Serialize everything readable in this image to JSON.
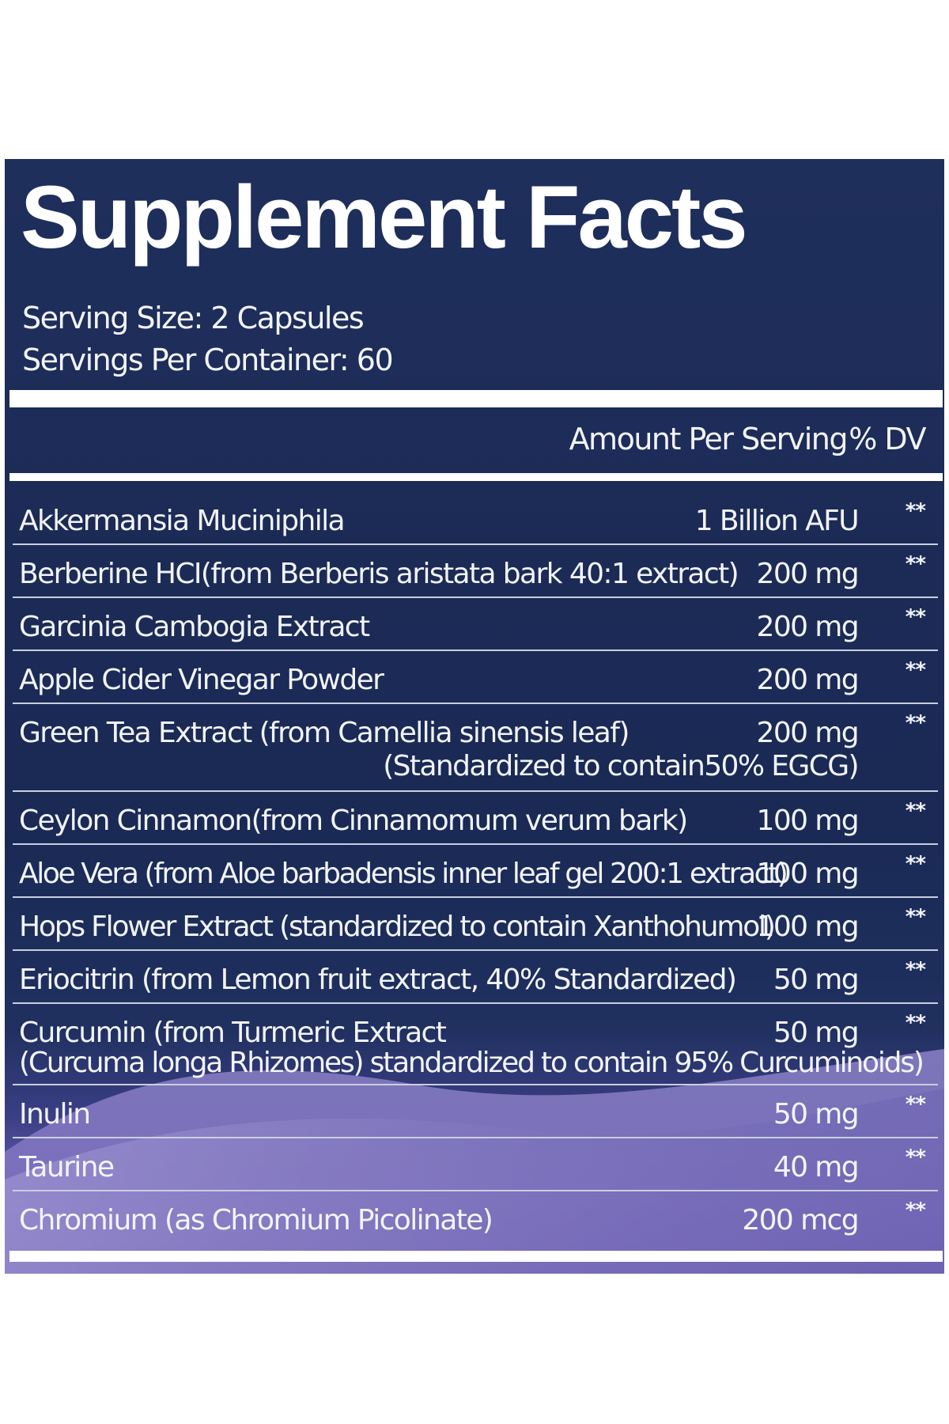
{
  "label": {
    "title": "Supplement Facts",
    "serving_size": "Serving Size: 2 Capsules",
    "servings_per_container": "Servings Per Container: 60",
    "amount_header": "Amount Per Serving",
    "dv_header": "% DV"
  },
  "colors": {
    "panel_background": "#1c2b56",
    "gradient_bottom": "#6c63b3",
    "text": "#ffffff"
  },
  "ingredients": [
    {
      "name": "Akkermansia Muciniphila",
      "amount": "1 Billion AFU",
      "dv": "**"
    },
    {
      "name": "Berberine HCI(from Berberis aristata bark 40:1 extract)",
      "amount": "200 mg",
      "dv": "**"
    },
    {
      "name": "Garcinia Cambogia Extract",
      "amount": "200 mg",
      "dv": "**"
    },
    {
      "name": "Apple Cider Vinegar Powder",
      "amount": "200 mg",
      "dv": "**"
    },
    {
      "name": "Green Tea Extract (from Camellia sinensis leaf)",
      "amount": "200 mg",
      "dv": "**",
      "note": "(Standardized to contain50% EGCG)"
    },
    {
      "name": "Ceylon Cinnamon(from Cinnamomum verum bark)",
      "amount": "100 mg",
      "dv": "**"
    },
    {
      "name": "Aloe Vera (from Aloe barbadensis inner leaf gel 200:1 extract)",
      "amount": "100 mg",
      "dv": "**"
    },
    {
      "name": "Hops Flower Extract (standardized to contain Xanthohumol)",
      "amount": "100 mg",
      "dv": "**"
    },
    {
      "name": "Eriocitrin (from Lemon fruit extract, 40% Standardized)",
      "amount": "50 mg",
      "dv": "**"
    },
    {
      "name": "Curcumin (from Turmeric Extract",
      "amount": "50 mg",
      "dv": "**",
      "note": "(Curcuma longa Rhizomes) standardized to contain 95% Curcuminoids)"
    },
    {
      "name": "Inulin",
      "amount": "50 mg",
      "dv": "**"
    },
    {
      "name": "Taurine",
      "amount": "40 mg",
      "dv": "**"
    },
    {
      "name": "Chromium (as Chromium Picolinate)",
      "amount": "200 mcg",
      "dv": "**"
    }
  ]
}
